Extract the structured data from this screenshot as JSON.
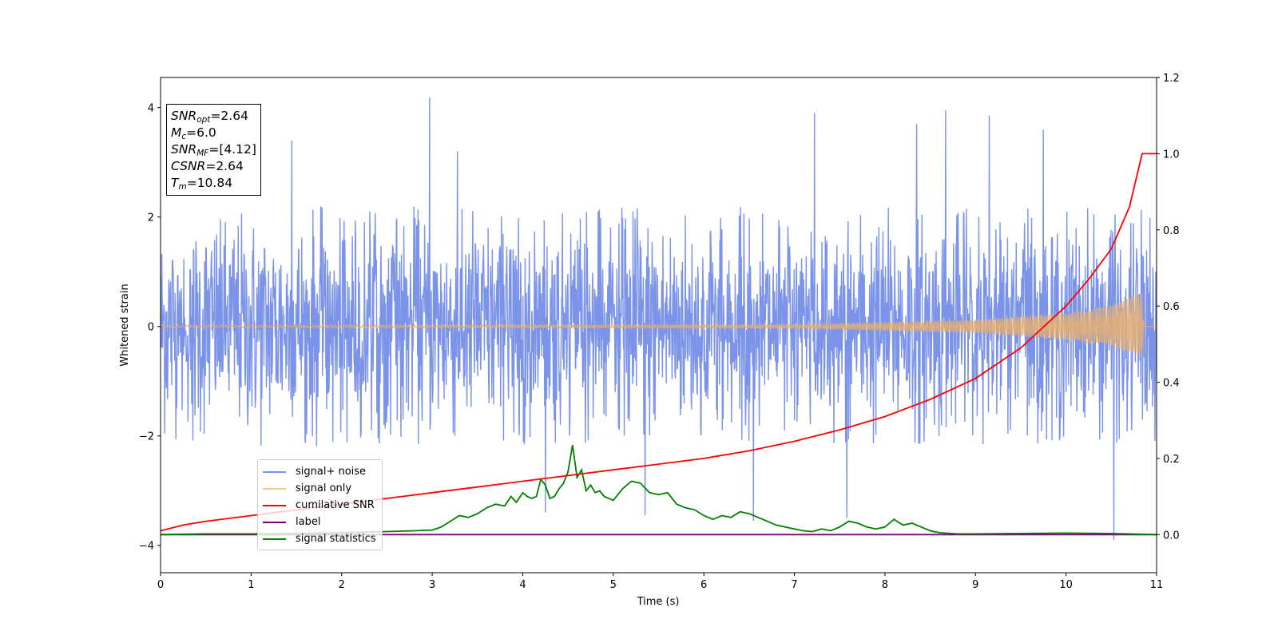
{
  "chart_data": {
    "type": "line",
    "xlabel": "Time (s)",
    "ylabel": "Whitened strain",
    "xlim": [
      0,
      11
    ],
    "ylim_left": [
      -4.5,
      4.55
    ],
    "ylim_right": [
      -0.1,
      1.2
    ],
    "x_ticks": [
      "0",
      "1",
      "2",
      "3",
      "4",
      "5",
      "6",
      "7",
      "8",
      "9",
      "10",
      "11"
    ],
    "y_ticks_left": [
      "−4",
      "−2",
      "0",
      "2",
      "4"
    ],
    "y_ticks_right": [
      "0.0",
      "0.2",
      "0.4",
      "0.6",
      "0.8",
      "1.0",
      "1.2"
    ],
    "grid": false,
    "legend_position": "lower-left",
    "series": [
      {
        "name": "signal+ noise",
        "color": "#7b93e8",
        "axis": "left",
        "description_values": "Gaussian-like noise, roughly within [-2.5, 2.5] with spikes up to 4.2 and down to -3.9",
        "x": [
          0,
          11
        ],
        "sample_count": 2400,
        "spread": 2.2,
        "spikes": [
          [
            1.45,
            3.4
          ],
          [
            2.97,
            4.18
          ],
          [
            3.28,
            3.2
          ],
          [
            7.22,
            3.9
          ],
          [
            8.35,
            3.7
          ],
          [
            8.67,
            3.95
          ],
          [
            9.15,
            3.85
          ],
          [
            9.75,
            3.6
          ],
          [
            10.53,
            -3.9
          ],
          [
            7.58,
            -3.5
          ],
          [
            6.55,
            -3.55
          ],
          [
            4.25,
            -3.4
          ],
          [
            5.35,
            -3.45
          ]
        ]
      },
      {
        "name": "signal only",
        "color": "#e8b070",
        "axis": "left",
        "chirp_amplitude": [
          [
            0,
            0.02
          ],
          [
            7,
            0.03
          ],
          [
            9,
            0.12
          ],
          [
            10,
            0.25
          ],
          [
            10.5,
            0.38
          ],
          [
            10.84,
            0.62
          ],
          [
            10.86,
            0
          ]
        ]
      },
      {
        "name": "cumilative SNR",
        "color": "#ff0000",
        "axis": "right",
        "x": [
          0,
          0.25,
          0.5,
          1,
          1.5,
          2,
          2.5,
          3,
          3.5,
          4,
          4.5,
          5,
          5.5,
          6,
          6.5,
          7,
          7.5,
          8,
          8.5,
          9,
          9.5,
          10,
          10.25,
          10.5,
          10.7,
          10.84,
          10.9,
          11
        ],
        "y": [
          0.01,
          0.025,
          0.035,
          0.05,
          0.065,
          0.08,
          0.095,
          0.11,
          0.125,
          0.14,
          0.155,
          0.17,
          0.185,
          0.2,
          0.22,
          0.245,
          0.275,
          0.31,
          0.355,
          0.41,
          0.49,
          0.6,
          0.67,
          0.75,
          0.86,
          1.0,
          1.0,
          1.0
        ]
      },
      {
        "name": "label",
        "color": "#800080",
        "axis": "right",
        "x": [
          0,
          11
        ],
        "y": [
          0,
          0
        ]
      },
      {
        "name": "signal statistics",
        "color": "#008000",
        "axis": "right",
        "x": [
          0,
          0.5,
          1,
          1.5,
          2,
          2.5,
          2.8,
          3.0,
          3.1,
          3.2,
          3.3,
          3.4,
          3.5,
          3.6,
          3.7,
          3.8,
          3.87,
          3.93,
          4.0,
          4.05,
          4.1,
          4.15,
          4.2,
          4.25,
          4.3,
          4.35,
          4.4,
          4.45,
          4.5,
          4.55,
          4.6,
          4.65,
          4.7,
          4.75,
          4.8,
          4.85,
          4.9,
          5.0,
          5.1,
          5.2,
          5.3,
          5.4,
          5.5,
          5.6,
          5.7,
          5.8,
          5.9,
          6.0,
          6.1,
          6.2,
          6.3,
          6.4,
          6.5,
          6.6,
          6.7,
          6.8,
          6.9,
          7.0,
          7.1,
          7.2,
          7.3,
          7.4,
          7.5,
          7.6,
          7.7,
          7.8,
          7.9,
          8.0,
          8.1,
          8.2,
          8.3,
          8.4,
          8.5,
          8.6,
          8.8,
          9.0,
          9.5,
          10.0,
          10.5,
          11
        ],
        "y": [
          0.0,
          0.002,
          0.002,
          0.003,
          0.005,
          0.008,
          0.01,
          0.012,
          0.02,
          0.035,
          0.05,
          0.045,
          0.055,
          0.07,
          0.08,
          0.075,
          0.1,
          0.085,
          0.11,
          0.1,
          0.095,
          0.1,
          0.145,
          0.13,
          0.095,
          0.1,
          0.12,
          0.135,
          0.165,
          0.235,
          0.15,
          0.17,
          0.115,
          0.13,
          0.11,
          0.115,
          0.1,
          0.09,
          0.12,
          0.14,
          0.135,
          0.11,
          0.105,
          0.11,
          0.08,
          0.07,
          0.065,
          0.05,
          0.04,
          0.05,
          0.045,
          0.06,
          0.055,
          0.045,
          0.035,
          0.025,
          0.02,
          0.015,
          0.01,
          0.008,
          0.015,
          0.01,
          0.02,
          0.035,
          0.03,
          0.02,
          0.015,
          0.02,
          0.04,
          0.025,
          0.03,
          0.02,
          0.01,
          0.005,
          0.002,
          0.002,
          0.003,
          0.004,
          0.003,
          0.0
        ]
      }
    ],
    "annotations": {
      "snr_opt": "=2.64",
      "mc": "=6.0",
      "snr_mf": "=[4.12]",
      "csnr": "=2.64",
      "tm": "=10.84"
    }
  },
  "info_box": {
    "snr_opt_label": "SNR",
    "snr_opt_sub": "opt",
    "snr_opt_value": "=2.64",
    "mc_label": "M",
    "mc_sub": "c",
    "mc_value": "=6.0",
    "snr_mf_label": "SNR",
    "snr_mf_sub": "MF",
    "snr_mf_value": "=[4.12]",
    "csnr_label": "CSNR",
    "csnr_value": "=2.64",
    "tm_label": "T",
    "tm_sub": "m",
    "tm_value": "=10.84"
  },
  "legend": [
    {
      "label": "signal+ noise",
      "color": "#7b93e8"
    },
    {
      "label": "signal only",
      "color": "#f5c98a"
    },
    {
      "label": "cumilative SNR",
      "color": "#ff0000"
    },
    {
      "label": "label",
      "color": "#800080"
    },
    {
      "label": "signal statistics",
      "color": "#008000"
    }
  ]
}
